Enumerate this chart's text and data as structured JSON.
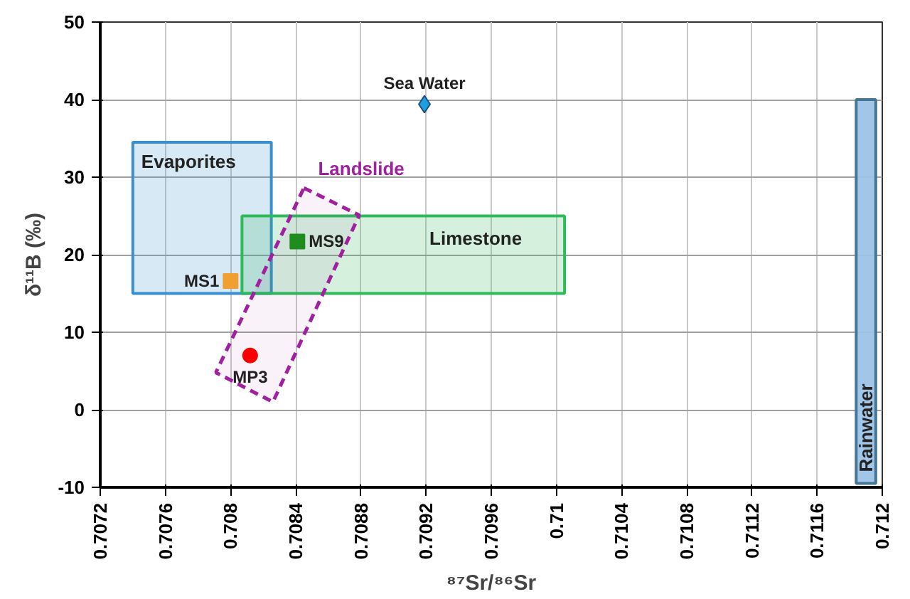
{
  "chart_data": {
    "type": "scatter",
    "xlabel": "⁸⁷Sr/⁸⁶Sr",
    "ylabel": "δ¹¹B (‰)",
    "xlim": [
      0.7072,
      0.712
    ],
    "ylim": [
      -10,
      50
    ],
    "xticks": [
      0.7072,
      0.7076,
      0.708,
      0.7084,
      0.7088,
      0.7092,
      0.7096,
      0.71,
      0.7104,
      0.7108,
      0.7112,
      0.7116,
      0.712
    ],
    "yticks": [
      -10,
      0,
      10,
      20,
      30,
      40,
      50
    ],
    "grid": true,
    "series": [
      {
        "name": "Evaporites",
        "type": "area",
        "color": "#3a8fd0",
        "x": [
          0.7074,
          0.70825,
          0.70825,
          0.7074,
          0.7074
        ],
        "values": [
          15,
          15,
          34.5,
          34.5,
          15
        ]
      },
      {
        "name": "Limestone",
        "type": "area",
        "color": "#2dbb5a",
        "x": [
          0.70807,
          0.71005,
          0.71005,
          0.70807,
          0.70807
        ],
        "values": [
          15,
          15,
          25,
          25,
          15
        ]
      },
      {
        "name": "Landslide",
        "type": "area",
        "line_style": "dashed",
        "color": "#a020a0",
        "x": [
          0.70845,
          0.70879,
          0.70826,
          0.70791,
          0.70845
        ],
        "values": [
          28.6,
          25.1,
          1.0,
          4.8,
          28.6
        ]
      },
      {
        "name": "Rainwater",
        "type": "area",
        "color": "#9dc3e6",
        "x": [
          0.71184,
          0.71196,
          0.71196,
          0.71184,
          0.71184
        ],
        "values": [
          -9.5,
          -9.5,
          40,
          40,
          -9.5
        ]
      },
      {
        "name": "MS1",
        "marker": "square",
        "color": "#f0a030",
        "x": [
          0.708
        ],
        "values": [
          16.6
        ]
      },
      {
        "name": "MS9",
        "marker": "square",
        "color": "#1e8c1e",
        "x": [
          0.70841
        ],
        "values": [
          21.7
        ]
      },
      {
        "name": "MP3",
        "marker": "circle",
        "color": "#ff0000",
        "x": [
          0.70812
        ],
        "values": [
          7.0
        ]
      },
      {
        "name": "Sea Water",
        "marker": "diamond",
        "color": "#1ea0e0",
        "x": [
          0.70919
        ],
        "values": [
          39.4
        ]
      }
    ]
  }
}
